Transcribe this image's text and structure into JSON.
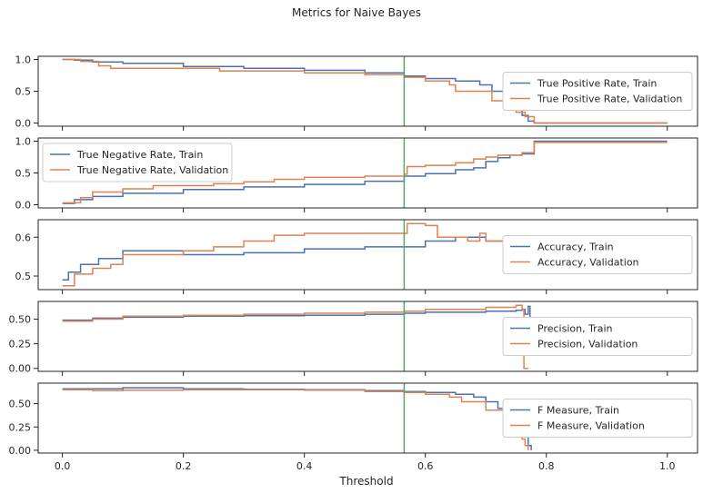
{
  "title": "Metrics for Naive Bayes",
  "xlabel": "Threshold",
  "colors": {
    "train": "#4c72b0",
    "validation": "#dd8452",
    "threshold_line": "#55a868"
  },
  "chart_data": [
    {
      "type": "line",
      "xlim": [
        -0.04,
        1.05
      ],
      "ylim": [
        -0.05,
        1.05
      ],
      "yticks": [
        "0.0",
        "0.5",
        "1.0"
      ],
      "ytick_values": [
        0,
        0.5,
        1
      ],
      "xticks": [
        "0.0",
        "0.2",
        "0.4",
        "0.6",
        "0.8",
        "1.0"
      ],
      "xtick_values": [
        0,
        0.2,
        0.4,
        0.6,
        0.8,
        1.0
      ],
      "vline": 0.565,
      "legend_position": "center-right",
      "series": [
        {
          "name": "True Positive Rate, Train",
          "color": "#4c72b0",
          "points": [
            [
              0,
              1.0
            ],
            [
              0.02,
              0.99
            ],
            [
              0.05,
              0.96
            ],
            [
              0.1,
              0.94
            ],
            [
              0.2,
              0.89
            ],
            [
              0.3,
              0.86
            ],
            [
              0.4,
              0.83
            ],
            [
              0.5,
              0.79
            ],
            [
              0.565,
              0.74
            ],
            [
              0.6,
              0.7
            ],
            [
              0.65,
              0.66
            ],
            [
              0.69,
              0.6
            ],
            [
              0.71,
              0.5
            ],
            [
              0.73,
              0.42
            ],
            [
              0.75,
              0.28
            ],
            [
              0.76,
              0.12
            ],
            [
              0.77,
              0.03
            ],
            [
              0.78,
              0.0
            ],
            [
              1.0,
              0.0
            ]
          ]
        },
        {
          "name": "True Positive Rate, Validation",
          "color": "#dd8452",
          "points": [
            [
              0,
              1.0
            ],
            [
              0.03,
              0.97
            ],
            [
              0.06,
              0.9
            ],
            [
              0.08,
              0.86
            ],
            [
              0.2,
              0.86
            ],
            [
              0.26,
              0.82
            ],
            [
              0.4,
              0.79
            ],
            [
              0.5,
              0.76
            ],
            [
              0.565,
              0.72
            ],
            [
              0.6,
              0.66
            ],
            [
              0.64,
              0.6
            ],
            [
              0.65,
              0.5
            ],
            [
              0.7,
              0.5
            ],
            [
              0.71,
              0.35
            ],
            [
              0.74,
              0.35
            ],
            [
              0.75,
              0.17
            ],
            [
              0.765,
              0.1
            ],
            [
              0.78,
              0.0
            ],
            [
              1.0,
              0.0
            ]
          ]
        }
      ]
    },
    {
      "type": "line",
      "xlim": [
        -0.04,
        1.05
      ],
      "ylim": [
        -0.05,
        1.05
      ],
      "yticks": [
        "0.0",
        "0.5",
        "1.0"
      ],
      "ytick_values": [
        0,
        0.5,
        1
      ],
      "xticks": [
        "0.0",
        "0.2",
        "0.4",
        "0.6",
        "0.8",
        "1.0"
      ],
      "xtick_values": [
        0,
        0.2,
        0.4,
        0.6,
        0.8,
        1.0
      ],
      "vline": 0.565,
      "legend_position": "upper-left",
      "series": [
        {
          "name": "True Negative Rate, Train",
          "color": "#4c72b0",
          "points": [
            [
              0,
              0.02
            ],
            [
              0.02,
              0.08
            ],
            [
              0.05,
              0.13
            ],
            [
              0.1,
              0.18
            ],
            [
              0.2,
              0.24
            ],
            [
              0.3,
              0.28
            ],
            [
              0.4,
              0.32
            ],
            [
              0.5,
              0.37
            ],
            [
              0.565,
              0.45
            ],
            [
              0.6,
              0.49
            ],
            [
              0.65,
              0.55
            ],
            [
              0.68,
              0.58
            ],
            [
              0.7,
              0.68
            ],
            [
              0.72,
              0.74
            ],
            [
              0.74,
              0.78
            ],
            [
              0.76,
              0.8
            ],
            [
              0.78,
              1.0
            ],
            [
              1.0,
              1.0
            ]
          ]
        },
        {
          "name": "True Negative Rate, Validation",
          "color": "#dd8452",
          "points": [
            [
              0,
              0.03
            ],
            [
              0.03,
              0.11
            ],
            [
              0.05,
              0.2
            ],
            [
              0.1,
              0.25
            ],
            [
              0.15,
              0.3
            ],
            [
              0.25,
              0.33
            ],
            [
              0.3,
              0.36
            ],
            [
              0.35,
              0.4
            ],
            [
              0.4,
              0.43
            ],
            [
              0.5,
              0.45
            ],
            [
              0.565,
              0.48
            ],
            [
              0.57,
              0.6
            ],
            [
              0.6,
              0.62
            ],
            [
              0.65,
              0.66
            ],
            [
              0.68,
              0.72
            ],
            [
              0.7,
              0.75
            ],
            [
              0.72,
              0.78
            ],
            [
              0.76,
              0.82
            ],
            [
              0.78,
              0.98
            ],
            [
              1.0,
              0.98
            ]
          ]
        }
      ]
    },
    {
      "type": "line",
      "xlim": [
        -0.04,
        1.05
      ],
      "ylim": [
        0.465,
        0.645
      ],
      "yticks": [
        "0.5",
        "0.6"
      ],
      "ytick_values": [
        0.5,
        0.6
      ],
      "xticks": [
        "0.0",
        "0.2",
        "0.4",
        "0.6",
        "0.8",
        "1.0"
      ],
      "xtick_values": [
        0,
        0.2,
        0.4,
        0.6,
        0.8,
        1.0
      ],
      "vline": 0.565,
      "legend_position": "center-right",
      "series": [
        {
          "name": "Accuracy, Train",
          "color": "#4c72b0",
          "points": [
            [
              0,
              0.49
            ],
            [
              0.01,
              0.51
            ],
            [
              0.03,
              0.53
            ],
            [
              0.06,
              0.545
            ],
            [
              0.1,
              0.565
            ],
            [
              0.2,
              0.565
            ],
            [
              0.2,
              0.555
            ],
            [
              0.3,
              0.56
            ],
            [
              0.4,
              0.57
            ],
            [
              0.5,
              0.575
            ],
            [
              0.565,
              0.575
            ],
            [
              0.6,
              0.59
            ],
            [
              0.65,
              0.6
            ],
            [
              0.7,
              0.59
            ],
            [
              0.73,
              0.575
            ],
            [
              0.75,
              0.545
            ],
            [
              0.76,
              0.53
            ],
            [
              0.78,
              0.52
            ],
            [
              1.0,
              0.52
            ]
          ]
        },
        {
          "name": "Accuracy, Validation",
          "color": "#dd8452",
          "points": [
            [
              0,
              0.475
            ],
            [
              0.02,
              0.505
            ],
            [
              0.05,
              0.52
            ],
            [
              0.08,
              0.53
            ],
            [
              0.1,
              0.555
            ],
            [
              0.2,
              0.565
            ],
            [
              0.25,
              0.575
            ],
            [
              0.3,
              0.59
            ],
            [
              0.35,
              0.605
            ],
            [
              0.4,
              0.61
            ],
            [
              0.5,
              0.61
            ],
            [
              0.565,
              0.61
            ],
            [
              0.57,
              0.635
            ],
            [
              0.6,
              0.63
            ],
            [
              0.62,
              0.6
            ],
            [
              0.67,
              0.59
            ],
            [
              0.69,
              0.61
            ],
            [
              0.7,
              0.59
            ],
            [
              0.74,
              0.575
            ],
            [
              0.76,
              0.54
            ],
            [
              0.78,
              0.525
            ],
            [
              1.0,
              0.525
            ]
          ]
        }
      ]
    },
    {
      "type": "line",
      "xlim": [
        -0.04,
        1.05
      ],
      "ylim": [
        -0.03,
        0.68
      ],
      "yticks": [
        "0.00",
        "0.25",
        "0.50"
      ],
      "ytick_values": [
        0,
        0.25,
        0.5
      ],
      "xticks": [
        "0.0",
        "0.2",
        "0.4",
        "0.6",
        "0.8",
        "1.0"
      ],
      "xtick_values": [
        0,
        0.2,
        0.4,
        0.6,
        0.8,
        1.0
      ],
      "vline": 0.565,
      "legend_position": "center-right",
      "series": [
        {
          "name": "Precision, Train",
          "color": "#4c72b0",
          "points": [
            [
              0,
              0.49
            ],
            [
              0.05,
              0.51
            ],
            [
              0.1,
              0.52
            ],
            [
              0.2,
              0.53
            ],
            [
              0.3,
              0.535
            ],
            [
              0.4,
              0.54
            ],
            [
              0.5,
              0.55
            ],
            [
              0.565,
              0.56
            ],
            [
              0.6,
              0.57
            ],
            [
              0.7,
              0.58
            ],
            [
              0.75,
              0.59
            ],
            [
              0.76,
              0.6
            ],
            [
              0.765,
              0.55
            ],
            [
              0.77,
              0.63
            ],
            [
              0.773,
              0.35
            ]
          ]
        },
        {
          "name": "Precision, Validation",
          "color": "#dd8452",
          "points": [
            [
              0,
              0.48
            ],
            [
              0.05,
              0.5
            ],
            [
              0.1,
              0.53
            ],
            [
              0.2,
              0.54
            ],
            [
              0.3,
              0.55
            ],
            [
              0.4,
              0.56
            ],
            [
              0.5,
              0.57
            ],
            [
              0.565,
              0.58
            ],
            [
              0.6,
              0.6
            ],
            [
              0.7,
              0.62
            ],
            [
              0.75,
              0.64
            ],
            [
              0.76,
              0.6
            ],
            [
              0.763,
              0.0
            ],
            [
              0.77,
              0.0
            ]
          ]
        }
      ]
    },
    {
      "type": "line",
      "xlim": [
        -0.04,
        1.05
      ],
      "ylim": [
        -0.03,
        0.72
      ],
      "yticks": [
        "0.00",
        "0.25",
        "0.50"
      ],
      "ytick_values": [
        0,
        0.25,
        0.5
      ],
      "xticks": [
        "0.0",
        "0.2",
        "0.4",
        "0.6",
        "0.8",
        "1.0"
      ],
      "xtick_values": [
        0,
        0.2,
        0.4,
        0.6,
        0.8,
        1.0
      ],
      "vline": 0.565,
      "legend_position": "center-right",
      "series": [
        {
          "name": "F Measure, Train",
          "color": "#4c72b0",
          "points": [
            [
              0,
              0.66
            ],
            [
              0.1,
              0.67
            ],
            [
              0.2,
              0.66
            ],
            [
              0.3,
              0.655
            ],
            [
              0.4,
              0.65
            ],
            [
              0.5,
              0.64
            ],
            [
              0.565,
              0.63
            ],
            [
              0.6,
              0.62
            ],
            [
              0.65,
              0.6
            ],
            [
              0.68,
              0.57
            ],
            [
              0.7,
              0.52
            ],
            [
              0.72,
              0.45
            ],
            [
              0.74,
              0.38
            ],
            [
              0.75,
              0.28
            ],
            [
              0.76,
              0.17
            ],
            [
              0.77,
              0.05
            ],
            [
              0.775,
              0.0
            ]
          ]
        },
        {
          "name": "F Measure, Validation",
          "color": "#dd8452",
          "points": [
            [
              0,
              0.65
            ],
            [
              0.05,
              0.64
            ],
            [
              0.1,
              0.645
            ],
            [
              0.2,
              0.65
            ],
            [
              0.3,
              0.65
            ],
            [
              0.4,
              0.645
            ],
            [
              0.5,
              0.63
            ],
            [
              0.565,
              0.62
            ],
            [
              0.6,
              0.6
            ],
            [
              0.64,
              0.57
            ],
            [
              0.66,
              0.52
            ],
            [
              0.7,
              0.43
            ],
            [
              0.73,
              0.43
            ],
            [
              0.74,
              0.33
            ],
            [
              0.75,
              0.24
            ],
            [
              0.76,
              0.12
            ],
            [
              0.765,
              0.05
            ],
            [
              0.77,
              0.0
            ]
          ]
        }
      ]
    }
  ]
}
